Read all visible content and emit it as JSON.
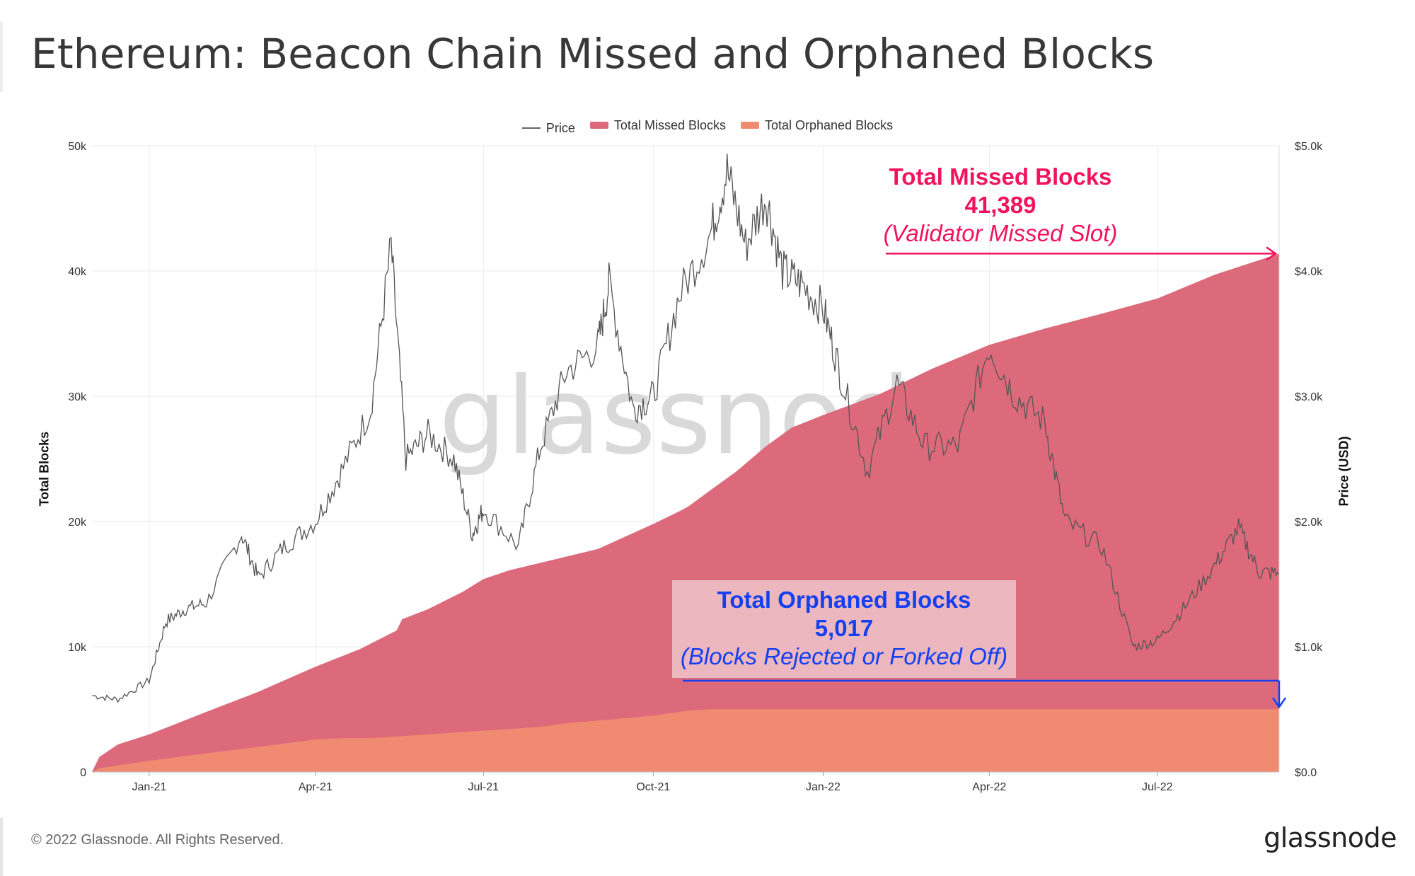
{
  "title": "Ethereum: Beacon Chain Missed and Orphaned Blocks",
  "footer": "© 2022 Glassnode. All Rights Reserved.",
  "logo": "glassnode",
  "watermark": "glassnode",
  "legend": [
    {
      "label": "Price",
      "type": "line",
      "color": "#666666"
    },
    {
      "label": "Total Missed Blocks",
      "type": "area",
      "color": "#dc6a7b"
    },
    {
      "label": "Total Orphaned Blocks",
      "type": "area",
      "color": "#f08a70"
    }
  ],
  "annotations": {
    "missed": {
      "title": "Total Missed Blocks",
      "value": "41,389",
      "subtitle": "(Validator Missed Slot)",
      "color": "#f0145c"
    },
    "orphaned": {
      "title": "Total Orphaned Blocks",
      "value": "5,017",
      "subtitle": "(Blocks Rejected or Forked Off)",
      "color": "#1440f0"
    }
  },
  "chart_data": {
    "type": "area",
    "title": "Ethereum: Beacon Chain Missed and Orphaned Blocks",
    "ylabel": "Total Blocks",
    "y2label": "Price (USD)",
    "ylim": [
      0,
      50000
    ],
    "y2lim": [
      0,
      5000
    ],
    "yticks": [
      "0",
      "10k",
      "20k",
      "30k",
      "40k",
      "50k"
    ],
    "y2ticks": [
      "$0.0",
      "$1.0k",
      "$2.0k",
      "$3.0k",
      "$4.0k",
      "$5.0k"
    ],
    "x_range": [
      "2020-12-01",
      "2022-09-05"
    ],
    "xticks": [
      {
        "label": "Jan-21",
        "date": "2021-01-01"
      },
      {
        "label": "Apr-21",
        "date": "2021-04-01"
      },
      {
        "label": "Jul-21",
        "date": "2021-07-01"
      },
      {
        "label": "Oct-21",
        "date": "2021-10-01"
      },
      {
        "label": "Jan-22",
        "date": "2022-01-01"
      },
      {
        "label": "Apr-22",
        "date": "2022-04-01"
      },
      {
        "label": "Jul-22",
        "date": "2022-07-01"
      }
    ],
    "series": [
      {
        "name": "Total Missed Blocks",
        "axis": "left",
        "color": "#dc6a7b",
        "points": [
          [
            "2020-12-01",
            0
          ],
          [
            "2020-12-05",
            1200
          ],
          [
            "2020-12-15",
            2200
          ],
          [
            "2021-01-01",
            3000
          ],
          [
            "2021-02-01",
            4800
          ],
          [
            "2021-03-01",
            6400
          ],
          [
            "2021-04-01",
            8400
          ],
          [
            "2021-04-25",
            9800
          ],
          [
            "2021-05-15",
            11300
          ],
          [
            "2021-05-18",
            12200
          ],
          [
            "2021-06-01",
            13000
          ],
          [
            "2021-06-20",
            14400
          ],
          [
            "2021-07-01",
            15400
          ],
          [
            "2021-07-15",
            16100
          ],
          [
            "2021-08-01",
            16700
          ],
          [
            "2021-09-01",
            17800
          ],
          [
            "2021-10-01",
            19800
          ],
          [
            "2021-10-15",
            20800
          ],
          [
            "2021-10-20",
            21200
          ],
          [
            "2021-11-01",
            22500
          ],
          [
            "2021-11-15",
            24000
          ],
          [
            "2021-12-01",
            26000
          ],
          [
            "2021-12-15",
            27500
          ],
          [
            "2022-01-01",
            28500
          ],
          [
            "2022-02-01",
            30200
          ],
          [
            "2022-03-01",
            32200
          ],
          [
            "2022-04-01",
            34100
          ],
          [
            "2022-05-01",
            35400
          ],
          [
            "2022-06-01",
            36600
          ],
          [
            "2022-07-01",
            37800
          ],
          [
            "2022-08-01",
            39700
          ],
          [
            "2022-09-05",
            41389
          ]
        ]
      },
      {
        "name": "Total Orphaned Blocks",
        "axis": "left",
        "color": "#f08a70",
        "points": [
          [
            "2020-12-01",
            0
          ],
          [
            "2020-12-05",
            300
          ],
          [
            "2021-01-01",
            900
          ],
          [
            "2021-02-01",
            1500
          ],
          [
            "2021-03-01",
            2000
          ],
          [
            "2021-04-01",
            2600
          ],
          [
            "2021-04-15",
            2700
          ],
          [
            "2021-05-01",
            2700
          ],
          [
            "2021-06-01",
            3000
          ],
          [
            "2021-07-01",
            3300
          ],
          [
            "2021-08-01",
            3600
          ],
          [
            "2021-08-15",
            3900
          ],
          [
            "2021-09-01",
            4100
          ],
          [
            "2021-10-01",
            4500
          ],
          [
            "2021-10-20",
            4900
          ],
          [
            "2021-11-01",
            5017
          ],
          [
            "2022-09-05",
            5017
          ]
        ]
      },
      {
        "name": "Price",
        "axis": "right",
        "color": "#555555",
        "points": [
          [
            "2020-12-01",
            610
          ],
          [
            "2020-12-15",
            580
          ],
          [
            "2021-01-01",
            730
          ],
          [
            "2021-01-10",
            1200
          ],
          [
            "2021-01-20",
            1300
          ],
          [
            "2021-02-01",
            1350
          ],
          [
            "2021-02-20",
            1900
          ],
          [
            "2021-03-01",
            1550
          ],
          [
            "2021-03-15",
            1800
          ],
          [
            "2021-04-01",
            2000
          ],
          [
            "2021-04-15",
            2400
          ],
          [
            "2021-05-01",
            2900
          ],
          [
            "2021-05-12",
            4200
          ],
          [
            "2021-05-20",
            2500
          ],
          [
            "2021-06-01",
            2700
          ],
          [
            "2021-06-15",
            2500
          ],
          [
            "2021-06-25",
            1900
          ],
          [
            "2021-07-01",
            2100
          ],
          [
            "2021-07-20",
            1800
          ],
          [
            "2021-08-01",
            2600
          ],
          [
            "2021-08-15",
            3200
          ],
          [
            "2021-09-01",
            3400
          ],
          [
            "2021-09-07",
            3900
          ],
          [
            "2021-09-20",
            2900
          ],
          [
            "2021-10-01",
            3000
          ],
          [
            "2021-10-15",
            3800
          ],
          [
            "2021-11-01",
            4300
          ],
          [
            "2021-11-10",
            4800
          ],
          [
            "2021-11-20",
            4200
          ],
          [
            "2021-12-01",
            4600
          ],
          [
            "2021-12-10",
            4000
          ],
          [
            "2021-12-20",
            3900
          ],
          [
            "2022-01-01",
            3700
          ],
          [
            "2022-01-10",
            3200
          ],
          [
            "2022-01-25",
            2400
          ],
          [
            "2022-02-10",
            3100
          ],
          [
            "2022-02-25",
            2600
          ],
          [
            "2022-03-15",
            2600
          ],
          [
            "2022-04-01",
            3400
          ],
          [
            "2022-04-15",
            3000
          ],
          [
            "2022-05-01",
            2800
          ],
          [
            "2022-05-12",
            2000
          ],
          [
            "2022-06-01",
            1800
          ],
          [
            "2022-06-18",
            1000
          ],
          [
            "2022-07-01",
            1050
          ],
          [
            "2022-07-15",
            1300
          ],
          [
            "2022-08-01",
            1650
          ],
          [
            "2022-08-14",
            1950
          ],
          [
            "2022-08-25",
            1600
          ],
          [
            "2022-09-05",
            1580
          ]
        ]
      }
    ]
  }
}
